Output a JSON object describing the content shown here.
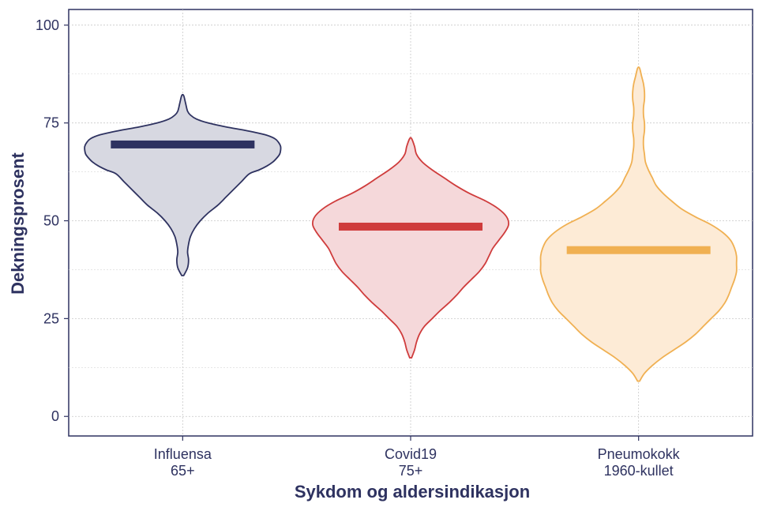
{
  "chart_data": {
    "type": "violin",
    "title": "",
    "xlabel": "Sykdom og aldersindikasjon",
    "ylabel": "Dekningsprosent",
    "ylim": [
      -5,
      104
    ],
    "yticks": [
      0,
      25,
      50,
      75,
      100
    ],
    "grid": true,
    "categories": [
      {
        "line1": "Influensa",
        "line2": "65+"
      },
      {
        "line1": "Covid19",
        "line2": "75+"
      },
      {
        "line1": "Pneumokokk",
        "line2": "1960-kullet"
      }
    ],
    "series": [
      {
        "median": 69.5,
        "range": [
          36,
          82
        ],
        "color": "#2e3260",
        "fill": "#d7d8e1",
        "profile": [
          [
            36,
            0.01
          ],
          [
            38,
            0.05
          ],
          [
            40,
            0.06
          ],
          [
            42,
            0.05
          ],
          [
            44,
            0.06
          ],
          [
            46,
            0.08
          ],
          [
            48,
            0.12
          ],
          [
            50,
            0.18
          ],
          [
            52,
            0.26
          ],
          [
            54,
            0.36
          ],
          [
            56,
            0.44
          ],
          [
            58,
            0.52
          ],
          [
            60,
            0.6
          ],
          [
            62,
            0.68
          ],
          [
            63,
            0.78
          ],
          [
            64,
            0.86
          ],
          [
            65,
            0.92
          ],
          [
            66,
            0.96
          ],
          [
            67,
            0.99
          ],
          [
            68,
            1.0
          ],
          [
            69,
            1.0
          ],
          [
            70,
            0.98
          ],
          [
            71,
            0.94
          ],
          [
            72,
            0.84
          ],
          [
            73,
            0.66
          ],
          [
            74,
            0.44
          ],
          [
            75,
            0.26
          ],
          [
            76,
            0.14
          ],
          [
            77,
            0.08
          ],
          [
            78,
            0.05
          ],
          [
            80,
            0.03
          ],
          [
            82,
            0.01
          ]
        ]
      },
      {
        "median": 48.5,
        "range": [
          15,
          71
        ],
        "color": "#cf3c3c",
        "fill": "#f5d8da",
        "profile": [
          [
            15,
            0.01
          ],
          [
            17,
            0.04
          ],
          [
            19,
            0.06
          ],
          [
            21,
            0.09
          ],
          [
            23,
            0.14
          ],
          [
            25,
            0.22
          ],
          [
            27,
            0.3
          ],
          [
            29,
            0.39
          ],
          [
            31,
            0.47
          ],
          [
            33,
            0.54
          ],
          [
            35,
            0.62
          ],
          [
            37,
            0.7
          ],
          [
            39,
            0.76
          ],
          [
            41,
            0.8
          ],
          [
            43,
            0.84
          ],
          [
            45,
            0.9
          ],
          [
            47,
            0.96
          ],
          [
            49,
            1.0
          ],
          [
            51,
            0.98
          ],
          [
            53,
            0.9
          ],
          [
            55,
            0.77
          ],
          [
            57,
            0.6
          ],
          [
            59,
            0.46
          ],
          [
            61,
            0.34
          ],
          [
            63,
            0.22
          ],
          [
            65,
            0.12
          ],
          [
            67,
            0.06
          ],
          [
            69,
            0.04
          ],
          [
            71,
            0.01
          ]
        ]
      },
      {
        "median": 42.5,
        "range": [
          9,
          89
        ],
        "color": "#f0b052",
        "fill": "#fdebd6",
        "profile": [
          [
            9,
            0.01
          ],
          [
            11,
            0.06
          ],
          [
            13,
            0.14
          ],
          [
            15,
            0.24
          ],
          [
            17,
            0.36
          ],
          [
            19,
            0.48
          ],
          [
            21,
            0.58
          ],
          [
            23,
            0.66
          ],
          [
            25,
            0.74
          ],
          [
            27,
            0.82
          ],
          [
            29,
            0.88
          ],
          [
            31,
            0.92
          ],
          [
            33,
            0.95
          ],
          [
            35,
            0.98
          ],
          [
            37,
            1.0
          ],
          [
            39,
            1.0
          ],
          [
            41,
            1.0
          ],
          [
            43,
            0.98
          ],
          [
            45,
            0.94
          ],
          [
            47,
            0.86
          ],
          [
            49,
            0.74
          ],
          [
            51,
            0.58
          ],
          [
            53,
            0.44
          ],
          [
            55,
            0.34
          ],
          [
            57,
            0.25
          ],
          [
            59,
            0.18
          ],
          [
            61,
            0.14
          ],
          [
            63,
            0.1
          ],
          [
            65,
            0.07
          ],
          [
            67,
            0.06
          ],
          [
            69,
            0.05
          ],
          [
            71,
            0.05
          ],
          [
            73,
            0.06
          ],
          [
            75,
            0.06
          ],
          [
            77,
            0.05
          ],
          [
            79,
            0.05
          ],
          [
            81,
            0.06
          ],
          [
            83,
            0.06
          ],
          [
            85,
            0.05
          ],
          [
            87,
            0.03
          ],
          [
            89,
            0.01
          ]
        ]
      }
    ]
  }
}
